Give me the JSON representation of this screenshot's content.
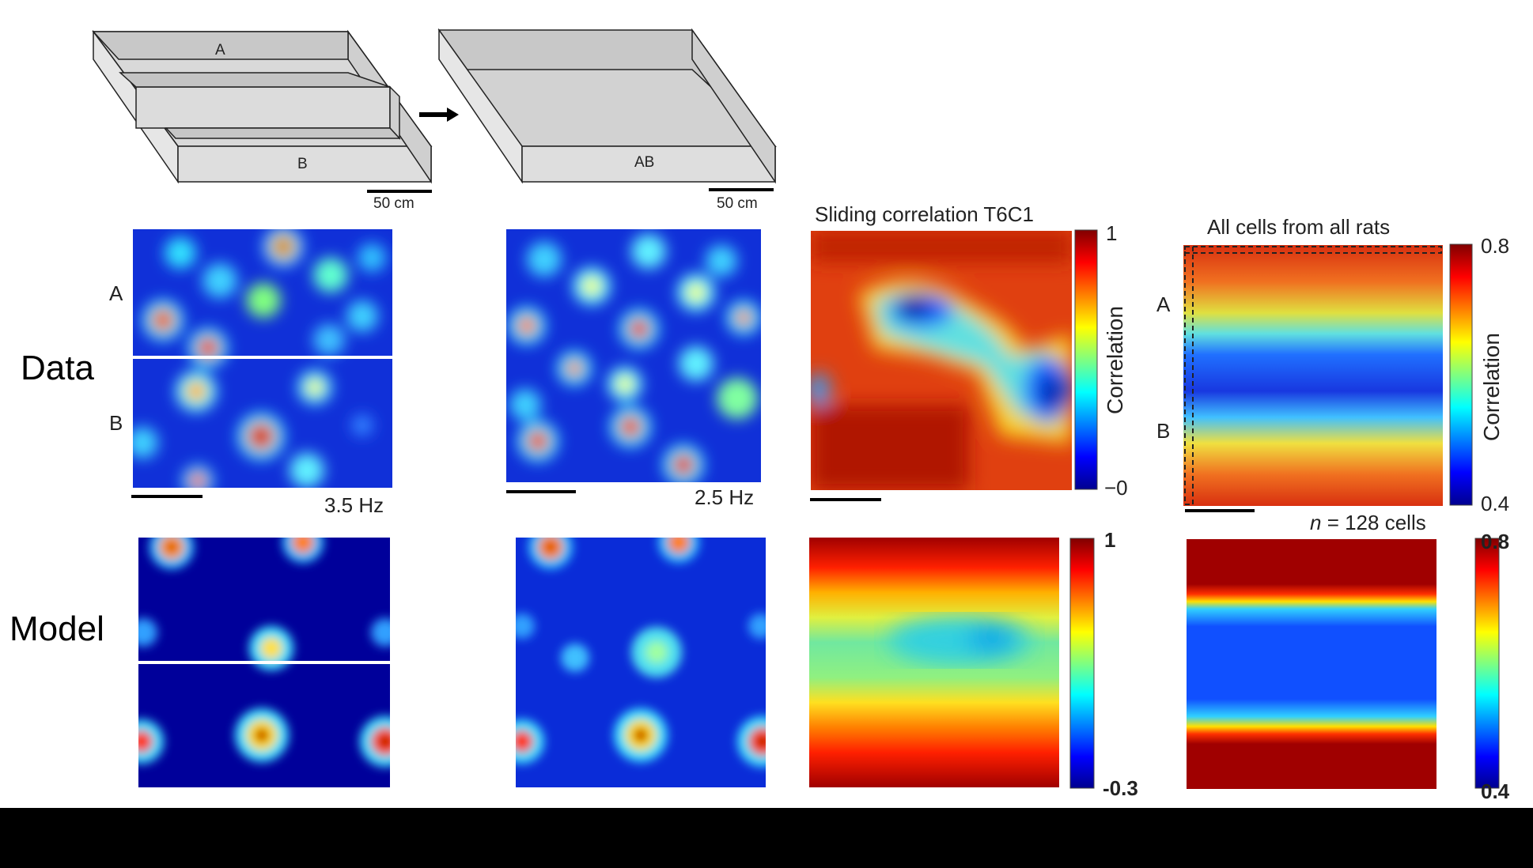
{
  "schematic": {
    "box1": {
      "label_a": "A",
      "label_b": "B",
      "scale": "50 cm"
    },
    "box2": {
      "label": "AB",
      "scale": "50 cm"
    }
  },
  "row_labels": {
    "data": "Data",
    "model": "Model"
  },
  "data_row": {
    "panel1": {
      "label_a": "A",
      "label_b": "B",
      "rate": "3.5 Hz"
    },
    "panel2": {
      "rate": "2.5 Hz"
    },
    "panel3": {
      "title": "Sliding correlation T6C1",
      "cbar_max": "1",
      "cbar_min": "−0",
      "cbar_label": "Correlation"
    },
    "panel4": {
      "title": "All cells from all rats",
      "label_a": "A",
      "label_b": "B",
      "cbar_max": "0.8",
      "cbar_min": "0.4",
      "cbar_label": "Correlation",
      "n_prefix": "n",
      "n_suffix": " = 128 cells"
    }
  },
  "model_row": {
    "panel3": {
      "cbar_max": "1",
      "cbar_min": "-0.3"
    },
    "panel4": {
      "cbar_max": "0.8",
      "cbar_min": "0.4"
    }
  },
  "colors": {
    "jet_low": "#00008f",
    "jet_high": "#800000",
    "box_fill": "#d9d9d9",
    "box_stroke": "#222222"
  }
}
